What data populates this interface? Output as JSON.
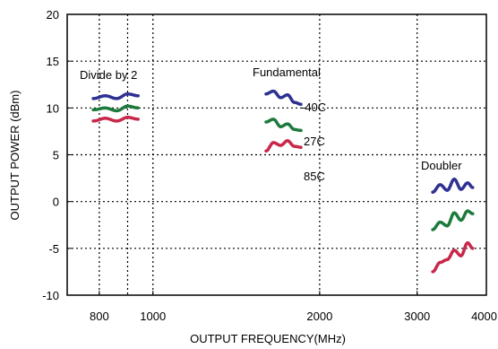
{
  "chart_data": {
    "type": "line",
    "xlabel": "OUTPUT FREQUENCY(MHz)",
    "ylabel": "OUTPUT POWER (dBm)",
    "xlim": [
      700,
      4000
    ],
    "ylim": [
      -10,
      20
    ],
    "xscale": "log",
    "x_ticks": [
      800,
      1000,
      2000,
      3000,
      4000
    ],
    "x_tick_labels": [
      "800",
      "1000",
      "2000",
      "3000",
      "4000"
    ],
    "y_ticks": [
      -10,
      -5,
      0,
      5,
      10,
      15,
      20
    ],
    "y_tick_labels": [
      "-10",
      "-5",
      "0",
      "5",
      "10",
      "15",
      "20"
    ],
    "x_grid": [
      800,
      900,
      1000,
      2000,
      3000
    ],
    "y_grid": [
      -5,
      0,
      5,
      10,
      15
    ],
    "grid": "dotted",
    "series": [
      {
        "name": "-40C",
        "group": "Divide by 2",
        "color": "#2e3192",
        "x": [
          780,
          820,
          860,
          900,
          940
        ],
        "y": [
          11.0,
          11.3,
          11.0,
          11.5,
          11.3
        ]
      },
      {
        "name": "27C",
        "group": "Divide by 2",
        "color": "#1e7a3c",
        "x": [
          780,
          820,
          860,
          900,
          940
        ],
        "y": [
          9.8,
          10.0,
          9.7,
          10.2,
          10.0
        ]
      },
      {
        "name": "85C",
        "group": "Divide by 2",
        "color": "#c8284a",
        "x": [
          780,
          820,
          860,
          900,
          940
        ],
        "y": [
          8.6,
          8.9,
          8.6,
          9.0,
          8.8
        ]
      },
      {
        "name": "-40C",
        "group": "Fundamental",
        "color": "#2e3192",
        "x": [
          1600,
          1650,
          1700,
          1750,
          1800,
          1850
        ],
        "y": [
          11.5,
          11.8,
          11.1,
          11.4,
          10.6,
          10.4
        ]
      },
      {
        "name": "27C",
        "group": "Fundamental",
        "color": "#1e7a3c",
        "x": [
          1600,
          1650,
          1700,
          1750,
          1800,
          1850
        ],
        "y": [
          8.5,
          8.8,
          8.0,
          8.3,
          7.7,
          7.6
        ]
      },
      {
        "name": "85C",
        "group": "Fundamental",
        "color": "#c8284a",
        "x": [
          1600,
          1650,
          1700,
          1750,
          1800,
          1850
        ],
        "y": [
          5.4,
          6.3,
          6.0,
          6.5,
          5.9,
          5.8
        ]
      },
      {
        "name": "-40C",
        "group": "Doubler",
        "color": "#2e3192",
        "x": [
          3200,
          3300,
          3400,
          3500,
          3600,
          3700,
          3780
        ],
        "y": [
          1.0,
          1.8,
          1.2,
          2.4,
          1.3,
          2.0,
          1.5
        ]
      },
      {
        "name": "27C",
        "group": "Doubler",
        "color": "#1e7a3c",
        "x": [
          3200,
          3300,
          3400,
          3500,
          3600,
          3700,
          3780
        ],
        "y": [
          -3.0,
          -2.2,
          -2.6,
          -1.2,
          -2.0,
          -1.0,
          -1.3
        ]
      },
      {
        "name": "85C",
        "group": "Doubler",
        "color": "#c8284a",
        "x": [
          3200,
          3300,
          3400,
          3500,
          3600,
          3700,
          3780
        ],
        "y": [
          -7.5,
          -6.5,
          -6.2,
          -5.2,
          -5.8,
          -4.4,
          -5.0
        ]
      }
    ],
    "annotations": {
      "divide_by_2": "Divide by 2",
      "fundamental": "Fundamental",
      "doubler": "Doubler",
      "temp_cold": "-40C",
      "temp_room": "27C",
      "temp_hot": "85C"
    }
  }
}
